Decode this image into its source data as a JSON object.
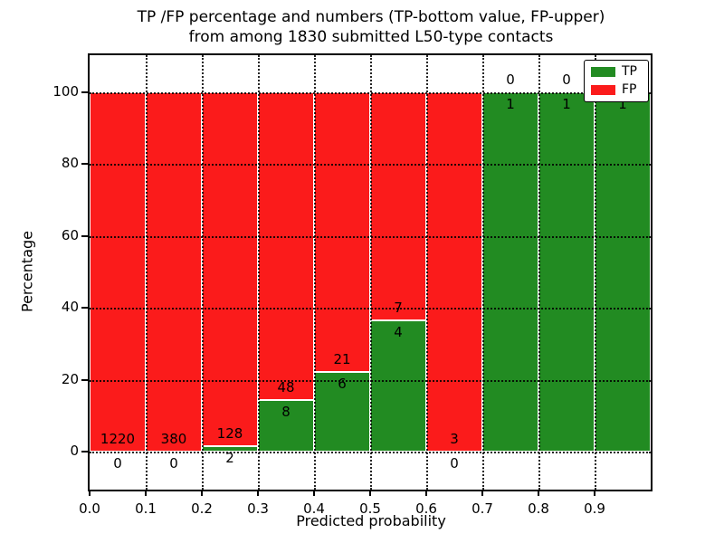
{
  "chart_data": {
    "type": "bar",
    "stacked": true,
    "title_line1": "TP /FP percentage and numbers (TP-bottom value, FP-upper)",
    "title_line2": "from among 1830 submitted L50-type contacts",
    "xlabel": "Predicted probability",
    "ylabel": "Percentage",
    "x_ticks": [
      "0.0",
      "0.1",
      "0.2",
      "0.3",
      "0.4",
      "0.5",
      "0.6",
      "0.7",
      "0.8",
      "0.9"
    ],
    "y_ticks": [
      {
        "label": "0",
        "percent": 0
      },
      {
        "label": "20",
        "percent": 20
      },
      {
        "label": "40",
        "percent": 40
      },
      {
        "label": "60",
        "percent": 60
      },
      {
        "label": "80",
        "percent": 80
      },
      {
        "label": "100",
        "percent": 100
      }
    ],
    "xlim": [
      0.0,
      1.0
    ],
    "ylim_percent": [
      -10.6,
      110.6
    ],
    "bin_width": 0.1,
    "total_contacts": 1830,
    "grid": "dotted black, horizontal every 20%, vertical every 0.1",
    "legend": [
      {
        "label": "TP",
        "color": "#228B22"
      },
      {
        "label": "FP",
        "color": "#FB1B1B"
      }
    ],
    "colors": {
      "tp": "#228B22",
      "fp": "#FB1B1B",
      "bar_edge": "#ffffff"
    },
    "bins": [
      {
        "range": "0.0-0.1",
        "tp": 0,
        "fp": 1220,
        "tp_percent": 0
      },
      {
        "range": "0.1-0.2",
        "tp": 0,
        "fp": 380,
        "tp_percent": 0
      },
      {
        "range": "0.2-0.3",
        "tp": 2,
        "fp": 128,
        "tp_percent": 1.5
      },
      {
        "range": "0.3-0.4",
        "tp": 8,
        "fp": 48,
        "tp_percent": 14.3
      },
      {
        "range": "0.4-0.5",
        "tp": 6,
        "fp": 21,
        "tp_percent": 22.2
      },
      {
        "range": "0.5-0.6",
        "tp": 4,
        "fp": 7,
        "tp_percent": 36.4
      },
      {
        "range": "0.6-0.7",
        "tp": 0,
        "fp": 3,
        "tp_percent": 0
      },
      {
        "range": "0.7-0.8",
        "tp": 1,
        "fp": 0,
        "tp_percent": 100
      },
      {
        "range": "0.8-0.9",
        "tp": 1,
        "fp": 0,
        "tp_percent": 100
      },
      {
        "range": "0.9-1.0",
        "tp": 1,
        "fp": 0,
        "tp_percent": 100
      }
    ]
  }
}
